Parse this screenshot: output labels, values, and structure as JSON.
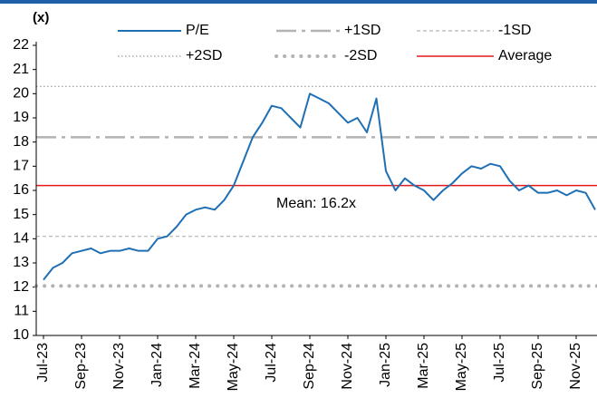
{
  "chart_data": {
    "type": "line",
    "y_axis_label": "(x)",
    "categories": [
      "Jul-23",
      null,
      null,
      null,
      "Sep-23",
      null,
      null,
      null,
      "Nov-23",
      null,
      null,
      null,
      "Jan-24",
      null,
      null,
      null,
      "Mar-24",
      null,
      null,
      null,
      "May-24",
      null,
      null,
      null,
      "Jul-24",
      null,
      null,
      null,
      "Sep-24",
      null,
      null,
      null,
      "Nov-24",
      null,
      null,
      null,
      "Jan-25",
      null,
      null,
      null,
      "Mar-25",
      null,
      null,
      null,
      "May-25",
      null,
      null,
      null,
      "Jul-25",
      null,
      null,
      null,
      "Sep-25",
      null,
      null,
      null,
      "Nov-25",
      null,
      null
    ],
    "series": [
      {
        "name": "P/E",
        "color": "#1f6fb4",
        "values": [
          12.3,
          12.8,
          13.0,
          13.4,
          13.5,
          13.6,
          13.4,
          13.5,
          13.5,
          13.6,
          13.5,
          13.5,
          14.0,
          14.1,
          14.5,
          15.0,
          15.2,
          15.3,
          15.2,
          15.6,
          16.2,
          17.2,
          18.2,
          18.8,
          19.5,
          19.4,
          19.0,
          18.6,
          20.0,
          19.8,
          19.6,
          19.2,
          18.8,
          19.0,
          18.4,
          19.8,
          16.8,
          16.0,
          16.5,
          16.2,
          16.0,
          15.6,
          16.0,
          16.3,
          16.7,
          17.0,
          16.9,
          17.1,
          17.0,
          16.4,
          16.0,
          16.2,
          15.9,
          15.9,
          16.0,
          15.8,
          16.0,
          15.9,
          15.2
        ]
      }
    ],
    "reference_lines": [
      {
        "name": "+1SD",
        "value": 18.2,
        "color": "#b3b3b3",
        "style": "dash-dot"
      },
      {
        "name": "-1SD",
        "value": 14.1,
        "color": "#b3b3b3",
        "style": "dashed"
      },
      {
        "name": "+2SD",
        "value": 20.3,
        "color": "#999999",
        "style": "dotted"
      },
      {
        "name": "-2SD",
        "value": 12.05,
        "color": "#b3b3b3",
        "style": "heavy-dotted"
      },
      {
        "name": "Average",
        "value": 16.2,
        "color": "#e31a1c",
        "style": "solid"
      }
    ],
    "annotation": "Mean: 16.2x",
    "ylim": [
      10,
      22
    ],
    "yticks": [
      10,
      11,
      12,
      13,
      14,
      15,
      16,
      17,
      18,
      19,
      20,
      21,
      22
    ]
  }
}
